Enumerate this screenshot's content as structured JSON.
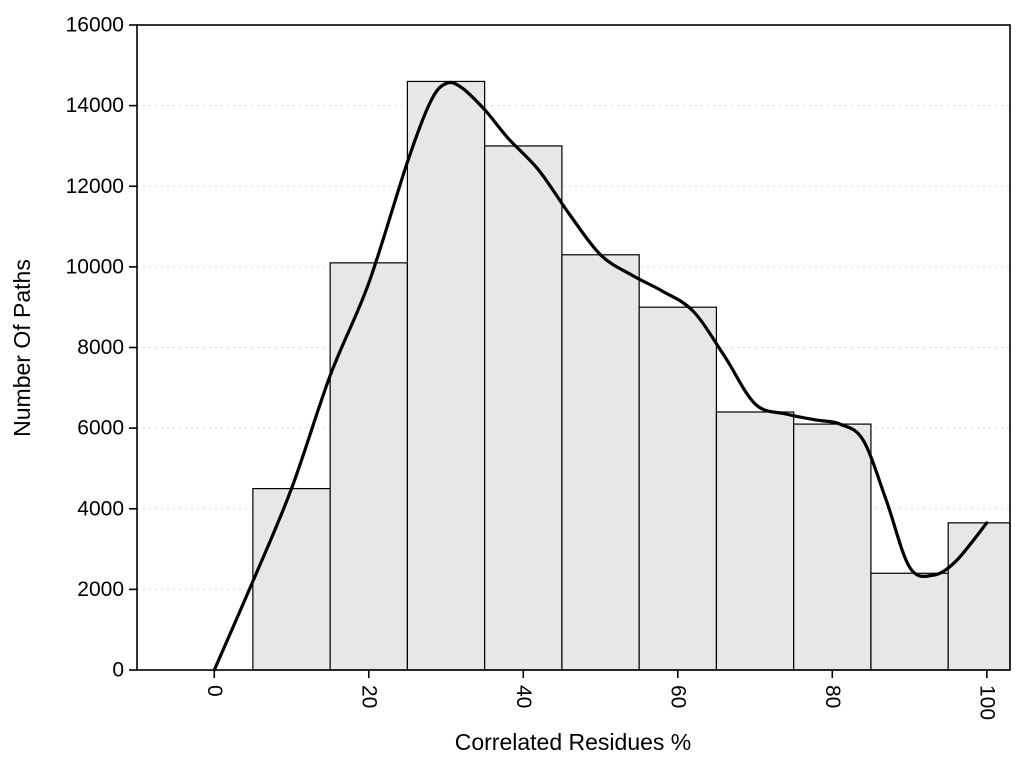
{
  "figure": {
    "background": "#ffffff"
  },
  "chart_data": {
    "type": "bar",
    "subtype": "histogram-with-smooth-curve",
    "title": "",
    "xlabel": "Correlated Residues %",
    "ylabel": "Number Of Paths",
    "xlim": [
      -10,
      103
    ],
    "ylim": [
      0,
      16000
    ],
    "xticks": [
      "0",
      "20",
      "40",
      "60",
      "80",
      "100"
    ],
    "xtick_values": [
      0,
      20,
      40,
      60,
      80,
      100
    ],
    "yticks": [
      "0",
      "2000",
      "4000",
      "6000",
      "8000",
      "10000",
      "12000",
      "14000",
      "16000"
    ],
    "ytick_values": [
      0,
      2000,
      4000,
      6000,
      8000,
      10000,
      12000,
      14000,
      16000
    ],
    "xtick_rotation": 90,
    "legend": "none",
    "bars": {
      "bin_edges": [
        5,
        15,
        25,
        35,
        45,
        55,
        65,
        75,
        85,
        95,
        105
      ],
      "counts": [
        4500,
        10100,
        14600,
        13000,
        10300,
        9000,
        6400,
        6100,
        2400,
        3650
      ],
      "fill": "#e7e7e7",
      "stroke": "#000000"
    },
    "curve": {
      "color": "#000000",
      "x": [
        0,
        5,
        10,
        15,
        20,
        25,
        28,
        30,
        32,
        35,
        38,
        42,
        46,
        50,
        54,
        58,
        62,
        66,
        70,
        74,
        78,
        81,
        84,
        87,
        90,
        93,
        96,
        100
      ],
      "y": [
        0,
        2200,
        4500,
        7300,
        9600,
        12600,
        14100,
        14550,
        14450,
        13900,
        13200,
        12400,
        11300,
        10300,
        9800,
        9400,
        8900,
        7800,
        6600,
        6350,
        6200,
        6100,
        5700,
        4200,
        2550,
        2350,
        2700,
        3650
      ]
    },
    "grid": {
      "horizontal": true,
      "vertical": false,
      "style": "dotted",
      "color": "#d9d9d9"
    },
    "axis_color": "#000000"
  }
}
